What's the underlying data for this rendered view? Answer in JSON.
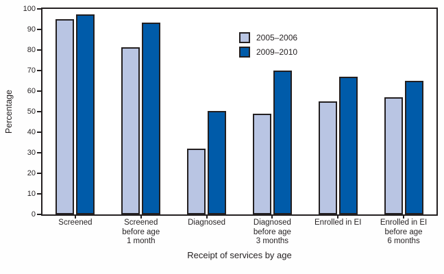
{
  "chart_data": {
    "type": "bar",
    "title": "",
    "xlabel": "Receipt of services by age",
    "ylabel": "Percentage",
    "ylim": [
      0,
      100
    ],
    "yticks": [
      0,
      10,
      20,
      30,
      40,
      50,
      60,
      70,
      80,
      90,
      100
    ],
    "grid": false,
    "legend_position": "top-center-inside",
    "categories": [
      "Screened",
      "Screened\nbefore age\n1 month",
      "Diagnosed",
      "Diagnosed\nbefore age\n3 months",
      "Enrolled in EI",
      "Enrolled in EI\nbefore age\n6 months"
    ],
    "series": [
      {
        "name": "2005–2006",
        "color": "#b9c5e3",
        "values": [
          95,
          81.5,
          32,
          49,
          55,
          57
        ]
      },
      {
        "name": "2009–2010",
        "color": "#005ba9",
        "values": [
          97.5,
          93.5,
          50.5,
          70,
          67,
          65
        ]
      }
    ]
  },
  "colors": {
    "axis": "#231f20",
    "text": "#231f20",
    "background": "#ffffff"
  }
}
